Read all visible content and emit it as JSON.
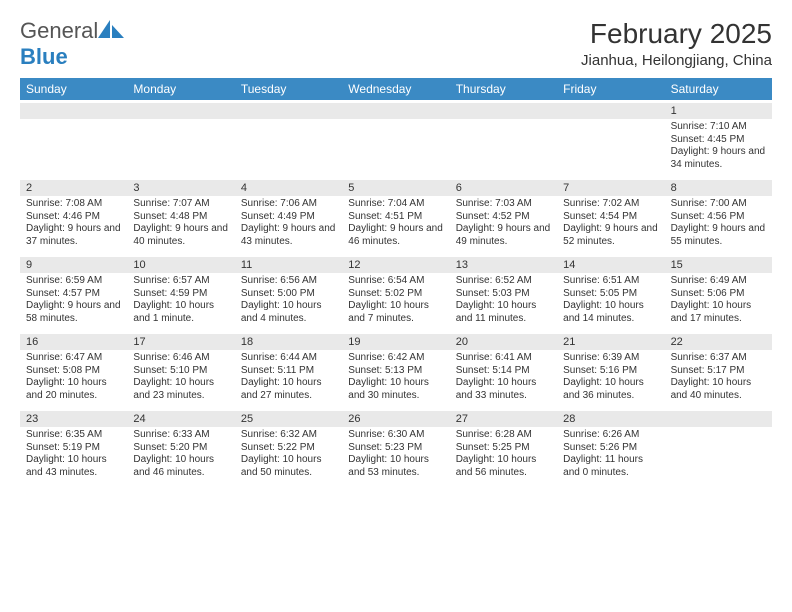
{
  "brand": {
    "word1": "General",
    "word2": "Blue",
    "icon_color": "#2a7fbf"
  },
  "title": "February 2025",
  "location": "Jianhua, Heilongjiang, China",
  "header_bg": "#3b8ac4",
  "daynum_bg": "#e9e9e9",
  "text_color": "#333333",
  "dow": [
    "Sunday",
    "Monday",
    "Tuesday",
    "Wednesday",
    "Thursday",
    "Friday",
    "Saturday"
  ],
  "weeks": [
    [
      {
        "n": "",
        "sr": "",
        "ss": "",
        "dl": ""
      },
      {
        "n": "",
        "sr": "",
        "ss": "",
        "dl": ""
      },
      {
        "n": "",
        "sr": "",
        "ss": "",
        "dl": ""
      },
      {
        "n": "",
        "sr": "",
        "ss": "",
        "dl": ""
      },
      {
        "n": "",
        "sr": "",
        "ss": "",
        "dl": ""
      },
      {
        "n": "",
        "sr": "",
        "ss": "",
        "dl": ""
      },
      {
        "n": "1",
        "sr": "Sunrise: 7:10 AM",
        "ss": "Sunset: 4:45 PM",
        "dl": "Daylight: 9 hours and 34 minutes."
      }
    ],
    [
      {
        "n": "2",
        "sr": "Sunrise: 7:08 AM",
        "ss": "Sunset: 4:46 PM",
        "dl": "Daylight: 9 hours and 37 minutes."
      },
      {
        "n": "3",
        "sr": "Sunrise: 7:07 AM",
        "ss": "Sunset: 4:48 PM",
        "dl": "Daylight: 9 hours and 40 minutes."
      },
      {
        "n": "4",
        "sr": "Sunrise: 7:06 AM",
        "ss": "Sunset: 4:49 PM",
        "dl": "Daylight: 9 hours and 43 minutes."
      },
      {
        "n": "5",
        "sr": "Sunrise: 7:04 AM",
        "ss": "Sunset: 4:51 PM",
        "dl": "Daylight: 9 hours and 46 minutes."
      },
      {
        "n": "6",
        "sr": "Sunrise: 7:03 AM",
        "ss": "Sunset: 4:52 PM",
        "dl": "Daylight: 9 hours and 49 minutes."
      },
      {
        "n": "7",
        "sr": "Sunrise: 7:02 AM",
        "ss": "Sunset: 4:54 PM",
        "dl": "Daylight: 9 hours and 52 minutes."
      },
      {
        "n": "8",
        "sr": "Sunrise: 7:00 AM",
        "ss": "Sunset: 4:56 PM",
        "dl": "Daylight: 9 hours and 55 minutes."
      }
    ],
    [
      {
        "n": "9",
        "sr": "Sunrise: 6:59 AM",
        "ss": "Sunset: 4:57 PM",
        "dl": "Daylight: 9 hours and 58 minutes."
      },
      {
        "n": "10",
        "sr": "Sunrise: 6:57 AM",
        "ss": "Sunset: 4:59 PM",
        "dl": "Daylight: 10 hours and 1 minute."
      },
      {
        "n": "11",
        "sr": "Sunrise: 6:56 AM",
        "ss": "Sunset: 5:00 PM",
        "dl": "Daylight: 10 hours and 4 minutes."
      },
      {
        "n": "12",
        "sr": "Sunrise: 6:54 AM",
        "ss": "Sunset: 5:02 PM",
        "dl": "Daylight: 10 hours and 7 minutes."
      },
      {
        "n": "13",
        "sr": "Sunrise: 6:52 AM",
        "ss": "Sunset: 5:03 PM",
        "dl": "Daylight: 10 hours and 11 minutes."
      },
      {
        "n": "14",
        "sr": "Sunrise: 6:51 AM",
        "ss": "Sunset: 5:05 PM",
        "dl": "Daylight: 10 hours and 14 minutes."
      },
      {
        "n": "15",
        "sr": "Sunrise: 6:49 AM",
        "ss": "Sunset: 5:06 PM",
        "dl": "Daylight: 10 hours and 17 minutes."
      }
    ],
    [
      {
        "n": "16",
        "sr": "Sunrise: 6:47 AM",
        "ss": "Sunset: 5:08 PM",
        "dl": "Daylight: 10 hours and 20 minutes."
      },
      {
        "n": "17",
        "sr": "Sunrise: 6:46 AM",
        "ss": "Sunset: 5:10 PM",
        "dl": "Daylight: 10 hours and 23 minutes."
      },
      {
        "n": "18",
        "sr": "Sunrise: 6:44 AM",
        "ss": "Sunset: 5:11 PM",
        "dl": "Daylight: 10 hours and 27 minutes."
      },
      {
        "n": "19",
        "sr": "Sunrise: 6:42 AM",
        "ss": "Sunset: 5:13 PM",
        "dl": "Daylight: 10 hours and 30 minutes."
      },
      {
        "n": "20",
        "sr": "Sunrise: 6:41 AM",
        "ss": "Sunset: 5:14 PM",
        "dl": "Daylight: 10 hours and 33 minutes."
      },
      {
        "n": "21",
        "sr": "Sunrise: 6:39 AM",
        "ss": "Sunset: 5:16 PM",
        "dl": "Daylight: 10 hours and 36 minutes."
      },
      {
        "n": "22",
        "sr": "Sunrise: 6:37 AM",
        "ss": "Sunset: 5:17 PM",
        "dl": "Daylight: 10 hours and 40 minutes."
      }
    ],
    [
      {
        "n": "23",
        "sr": "Sunrise: 6:35 AM",
        "ss": "Sunset: 5:19 PM",
        "dl": "Daylight: 10 hours and 43 minutes."
      },
      {
        "n": "24",
        "sr": "Sunrise: 6:33 AM",
        "ss": "Sunset: 5:20 PM",
        "dl": "Daylight: 10 hours and 46 minutes."
      },
      {
        "n": "25",
        "sr": "Sunrise: 6:32 AM",
        "ss": "Sunset: 5:22 PM",
        "dl": "Daylight: 10 hours and 50 minutes."
      },
      {
        "n": "26",
        "sr": "Sunrise: 6:30 AM",
        "ss": "Sunset: 5:23 PM",
        "dl": "Daylight: 10 hours and 53 minutes."
      },
      {
        "n": "27",
        "sr": "Sunrise: 6:28 AM",
        "ss": "Sunset: 5:25 PM",
        "dl": "Daylight: 10 hours and 56 minutes."
      },
      {
        "n": "28",
        "sr": "Sunrise: 6:26 AM",
        "ss": "Sunset: 5:26 PM",
        "dl": "Daylight: 11 hours and 0 minutes."
      },
      {
        "n": "",
        "sr": "",
        "ss": "",
        "dl": ""
      }
    ]
  ]
}
